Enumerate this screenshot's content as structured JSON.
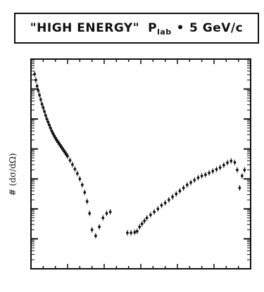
{
  "chart_data": {
    "type": "scatter",
    "title": {
      "prefix": "\"HIGH ENERGY\"",
      "var": "P",
      "sub": "lab",
      "eq": "•",
      "value": "5 GeV/c"
    },
    "ylabel": "# (dσ/dΩ)",
    "xlabel": "",
    "x_scale": "angle (deg)",
    "xlim": [
      0,
      180
    ],
    "y_scale": "log",
    "ylim_log10": [
      0,
      7
    ],
    "grid": false,
    "legend": "none",
    "marker_color": "#111111",
    "series": [
      {
        "points": [
          [
            3,
            6.5
          ],
          [
            4,
            6.3
          ],
          [
            5,
            6.1
          ],
          [
            6,
            5.95
          ],
          [
            7,
            5.8
          ],
          [
            8,
            5.65
          ],
          [
            9,
            5.5
          ],
          [
            10,
            5.38
          ],
          [
            11,
            5.25
          ],
          [
            12,
            5.12
          ],
          [
            13,
            5.0
          ],
          [
            14,
            4.9
          ],
          [
            15,
            4.8
          ],
          [
            16,
            4.7
          ],
          [
            17,
            4.6
          ],
          [
            18,
            4.52
          ],
          [
            19,
            4.44
          ],
          [
            20,
            4.37
          ],
          [
            21,
            4.3
          ],
          [
            22,
            4.24
          ],
          [
            23,
            4.18
          ],
          [
            24,
            4.12
          ],
          [
            25,
            4.06
          ],
          [
            26,
            4.0
          ],
          [
            27,
            3.94
          ],
          [
            28,
            3.88
          ],
          [
            29,
            3.82
          ],
          [
            30,
            3.76
          ],
          [
            32,
            3.62
          ],
          [
            34,
            3.48
          ],
          [
            36,
            3.33
          ],
          [
            38,
            3.18
          ],
          [
            40,
            3.0
          ],
          [
            42,
            2.8
          ],
          [
            44,
            2.55
          ],
          [
            46,
            2.25
          ],
          [
            48,
            1.85
          ],
          [
            50,
            1.3
          ],
          [
            53,
            1.1
          ],
          [
            56,
            1.4
          ],
          [
            59,
            1.7
          ],
          [
            62,
            1.85
          ],
          [
            65,
            1.9
          ],
          [
            79,
            1.2
          ],
          [
            82,
            1.2
          ],
          [
            85,
            1.22
          ],
          [
            87,
            1.25
          ],
          [
            89,
            1.4
          ],
          [
            91,
            1.5
          ],
          [
            93,
            1.6
          ],
          [
            95,
            1.7
          ],
          [
            98,
            1.8
          ],
          [
            101,
            1.9
          ],
          [
            104,
            2.0
          ],
          [
            107,
            2.12
          ],
          [
            110,
            2.2
          ],
          [
            113,
            2.3
          ],
          [
            116,
            2.4
          ],
          [
            119,
            2.5
          ],
          [
            122,
            2.6
          ],
          [
            125,
            2.7
          ],
          [
            128,
            2.8
          ],
          [
            131,
            2.88
          ],
          [
            134,
            2.96
          ],
          [
            137,
            3.04
          ],
          [
            140,
            3.1
          ],
          [
            143,
            3.14
          ],
          [
            146,
            3.2
          ],
          [
            149,
            3.26
          ],
          [
            152,
            3.32
          ],
          [
            155,
            3.38
          ],
          [
            158,
            3.46
          ],
          [
            161,
            3.54
          ],
          [
            164,
            3.6
          ],
          [
            167,
            3.55
          ],
          [
            169,
            3.3
          ],
          [
            171,
            2.7
          ],
          [
            173,
            3.1
          ],
          [
            175,
            3.3
          ]
        ]
      }
    ]
  }
}
